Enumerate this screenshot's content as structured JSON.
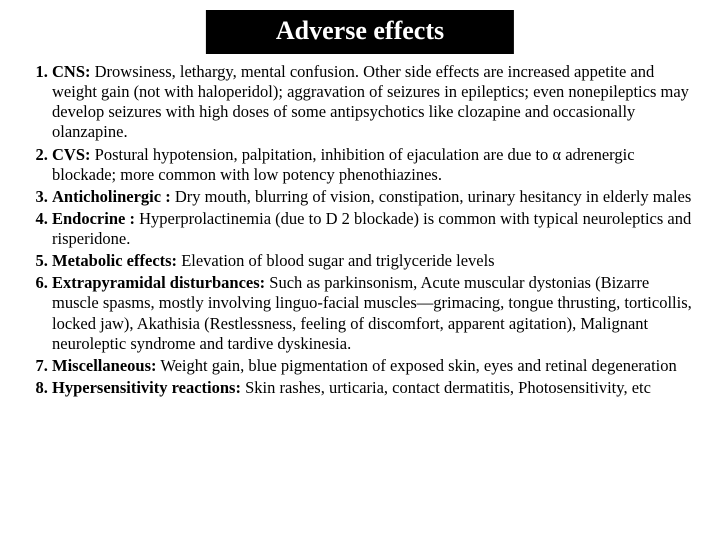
{
  "title": "Adverse effects",
  "title_bg": "#000000",
  "title_color": "#ffffff",
  "slide_bg": "#ffffff",
  "text_color": "#000000",
  "title_fontsize": 26,
  "body_fontsize": 16.5,
  "items": [
    {
      "lead": "CNS:",
      "rest": " Drowsiness, lethargy, mental confusion. Other side effects are increased appetite and weight gain (not with haloperidol); aggravation of seizures in epileptics; even nonepileptics may develop seizures with high doses of some antipsychotics like clozapine and occasionally olanzapine."
    },
    {
      "lead": "CVS:",
      "rest": " Postural hypotension, palpitation, inhibition of ejaculation are due to α adrenergic blockade; more common with low potency phenothiazines."
    },
    {
      "lead": "Anticholinergic :",
      "rest": " Dry mouth, blurring of vision, constipation, urinary hesitancy in elderly males"
    },
    {
      "lead": "Endocrine :",
      "rest": " Hyperprolactinemia (due to D 2 blockade) is common with typical neuroleptics and risperidone."
    },
    {
      "lead": "Metabolic effects:",
      "rest": " Elevation of blood sugar and triglyceride levels"
    },
    {
      "lead": "Extrapyramidal disturbances:",
      "rest": " Such as parkinsonism, Acute muscular dystonias (Bizarre muscle spasms, mostly involving linguo-facial muscles—grimacing, tongue thrusting, torticollis, locked jaw), Akathisia (Restlessness, feeling of discomfort, apparent agitation), Malignant neuroleptic syndrome and tardive dyskinesia."
    },
    {
      "lead": "Miscellaneous:",
      "rest": " Weight gain, blue pigmentation of exposed skin, eyes and retinal degeneration"
    },
    {
      "lead": "Hypersensitivity reactions:",
      "rest": " Skin rashes, urticaria, contact dermatitis, Photosensitivity, etc"
    }
  ]
}
